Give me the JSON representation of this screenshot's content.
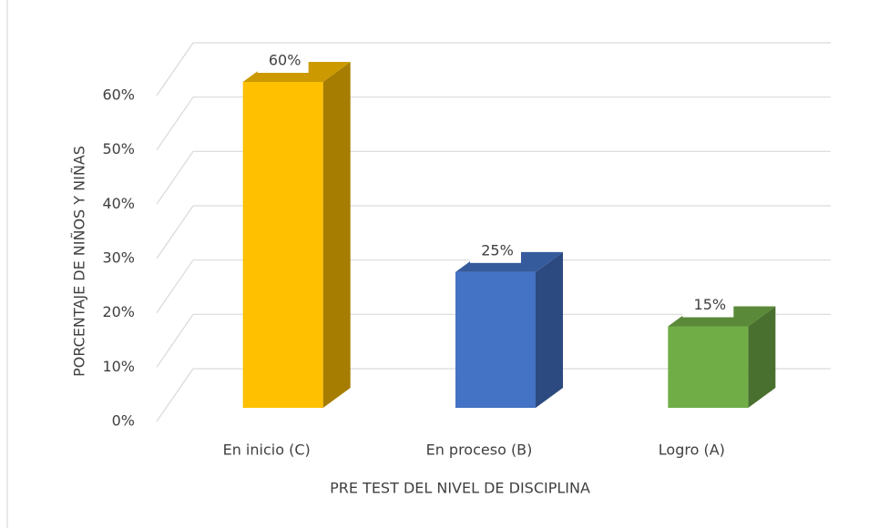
{
  "chart_data": {
    "type": "bar3d",
    "categories": [
      "En inicio (C)",
      "En proceso (B)",
      "Logro (A)"
    ],
    "values": [
      60,
      25,
      15
    ],
    "value_labels": [
      "60%",
      "25%",
      "15%"
    ],
    "colors": [
      "#ffc000",
      "#4472c4",
      "#70ad47"
    ],
    "x_label": "PRE TEST DEL NIVEL DE DISCIPLINA",
    "y_label": "PORCENTAJE  DE NIÑOS Y NIÑAS",
    "ylim": [
      0,
      60
    ],
    "yticks": [
      {
        "value": 0,
        "label": "0%"
      },
      {
        "value": 10,
        "label": "10%"
      },
      {
        "value": 20,
        "label": "20%"
      },
      {
        "value": 30,
        "label": "30%"
      },
      {
        "value": 40,
        "label": "40%"
      },
      {
        "value": 50,
        "label": "50%"
      },
      {
        "value": 60,
        "label": "60%"
      }
    ],
    "grid": true
  }
}
